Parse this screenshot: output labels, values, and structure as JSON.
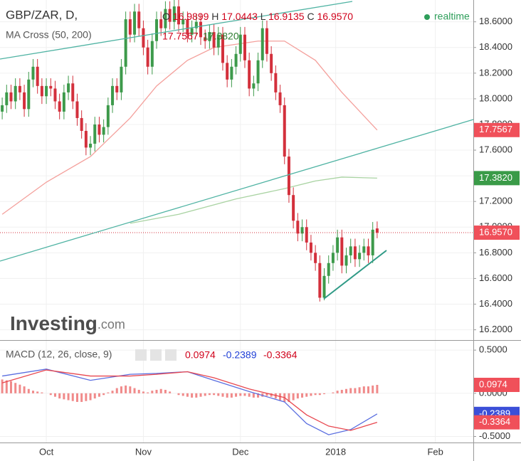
{
  "legend": {
    "symbol": "GBP/ZAR, D,",
    "o": "O",
    "open": "16.9899",
    "h": "H",
    "high": "17.0443",
    "l": "L",
    "low": "16.9135",
    "c": "C",
    "close": "16.9570",
    "ma_title": "MA Cross (50, 200)",
    "ma_fast": "17.7567",
    "ma_slow": "17.3820",
    "macd_title": "MACD (12, 26, close, 9)",
    "macd_hist": "0.0974",
    "macd_line": "-0.2389",
    "macd_signal": "-0.3364"
  },
  "realtime": "realtime",
  "brand": {
    "name": "Investing",
    "suffix": ".com"
  },
  "chart_data": [
    {
      "type": "candlestick",
      "up_color": "#3d9a4b",
      "down_color": "#d3303c",
      "grid": true,
      "open": [
        17.9,
        17.95,
        18.05,
        17.98,
        18.1,
        18.05,
        17.92,
        18.15,
        18.25,
        18.1,
        18.02,
        18.1,
        18.08,
        17.98,
        17.9,
        18.05,
        18.12,
        17.98,
        17.85,
        17.75,
        17.62,
        17.65,
        17.8,
        17.72,
        17.78,
        17.95,
        18.1,
        18.05,
        18.25,
        18.62,
        18.5,
        18.68,
        18.55,
        18.4,
        18.25,
        18.45,
        18.62,
        18.55,
        18.7,
        18.6,
        18.72,
        18.58,
        18.62,
        18.5,
        18.55,
        18.6,
        18.48,
        18.45,
        18.52,
        18.4,
        18.5,
        18.28,
        18.15,
        18.25,
        18.35,
        18.5,
        18.3,
        18.08,
        18.12,
        18.3,
        18.55,
        18.35,
        18.2,
        18.05,
        17.95,
        17.55,
        17.25,
        17.05,
        16.95,
        17.0,
        16.88,
        16.8,
        16.72,
        16.45,
        16.62,
        16.72,
        16.8,
        16.92,
        16.7,
        16.78,
        16.85,
        16.75,
        16.8,
        16.85,
        16.78,
        16.9899
      ],
      "high": [
        18.01,
        18.11,
        18.11,
        18.16,
        18.16,
        18.11,
        18.21,
        18.31,
        18.31,
        18.16,
        18.16,
        18.16,
        18.14,
        18.04,
        18.11,
        18.18,
        18.18,
        18.04,
        17.91,
        17.81,
        17.71,
        17.86,
        17.86,
        17.84,
        18.01,
        18.16,
        18.16,
        18.31,
        18.68,
        18.68,
        18.74,
        18.74,
        18.61,
        18.46,
        18.51,
        18.68,
        18.68,
        18.76,
        18.76,
        18.78,
        18.78,
        18.68,
        18.68,
        18.61,
        18.66,
        18.66,
        18.54,
        18.58,
        18.58,
        18.56,
        18.56,
        18.34,
        18.31,
        18.41,
        18.56,
        18.56,
        18.36,
        18.18,
        18.36,
        18.61,
        18.61,
        18.41,
        18.26,
        18.11,
        18.01,
        17.61,
        17.31,
        17.11,
        17.06,
        17.06,
        16.94,
        16.86,
        16.78,
        16.68,
        16.78,
        16.86,
        16.98,
        16.98,
        16.84,
        16.91,
        16.91,
        16.86,
        16.91,
        16.91,
        17.04,
        17.0443
      ],
      "low": [
        17.84,
        17.89,
        17.92,
        17.92,
        17.99,
        17.86,
        17.86,
        18.09,
        18.04,
        17.96,
        17.96,
        18.02,
        17.92,
        17.84,
        17.84,
        17.99,
        17.92,
        17.79,
        17.69,
        17.56,
        17.56,
        17.59,
        17.66,
        17.66,
        17.72,
        17.89,
        17.99,
        17.99,
        18.19,
        18.44,
        18.44,
        18.49,
        18.34,
        18.19,
        18.19,
        18.39,
        18.49,
        18.49,
        18.54,
        18.54,
        18.52,
        18.52,
        18.44,
        18.44,
        18.49,
        18.42,
        18.39,
        18.39,
        18.34,
        18.34,
        18.22,
        18.09,
        18.09,
        18.19,
        18.29,
        18.24,
        18.02,
        18.02,
        18.06,
        18.24,
        18.29,
        18.14,
        17.99,
        17.89,
        17.49,
        17.19,
        16.99,
        16.89,
        16.89,
        16.82,
        16.74,
        16.66,
        16.42,
        16.43,
        16.56,
        16.66,
        16.74,
        16.64,
        16.64,
        16.72,
        16.69,
        16.69,
        16.74,
        16.72,
        16.72,
        16.9135
      ],
      "close": [
        17.95,
        18.05,
        17.98,
        18.1,
        18.05,
        17.92,
        18.15,
        18.25,
        18.1,
        18.02,
        18.1,
        18.08,
        17.98,
        17.9,
        18.05,
        18.12,
        17.98,
        17.85,
        17.75,
        17.62,
        17.65,
        17.8,
        17.72,
        17.78,
        17.95,
        18.1,
        18.05,
        18.25,
        18.62,
        18.5,
        18.68,
        18.55,
        18.4,
        18.25,
        18.45,
        18.62,
        18.55,
        18.7,
        18.6,
        18.72,
        18.58,
        18.62,
        18.5,
        18.55,
        18.6,
        18.48,
        18.45,
        18.52,
        18.4,
        18.5,
        18.28,
        18.15,
        18.25,
        18.35,
        18.5,
        18.3,
        18.08,
        18.12,
        18.3,
        18.55,
        18.35,
        18.2,
        18.05,
        17.95,
        17.55,
        17.25,
        17.05,
        16.95,
        17.0,
        16.88,
        16.8,
        16.72,
        16.45,
        16.62,
        16.72,
        16.8,
        16.92,
        16.7,
        16.78,
        16.85,
        16.75,
        16.8,
        16.85,
        16.78,
        16.98,
        16.957
      ],
      "series": [
        {
          "color": "#f4a09c",
          "x": [
            0,
            10,
            20,
            29,
            35,
            42,
            48,
            58,
            64,
            71,
            77,
            85
          ],
          "values": [
            17.1,
            17.35,
            17.55,
            17.85,
            18.1,
            18.3,
            18.4,
            18.45,
            18.45,
            18.3,
            18.05,
            17.7567
          ]
        },
        {
          "color": "#a9d3a2",
          "x": [
            29,
            40,
            53,
            64,
            71,
            77,
            85
          ],
          "values": [
            17.03,
            17.1,
            17.22,
            17.3,
            17.36,
            17.39,
            17.382
          ]
        }
      ],
      "xlim": [
        -0.5,
        106.8
      ],
      "ylim": [
        16.12,
        18.77
      ],
      "xticks": [
        {
          "value": 10,
          "label": "Oct"
        },
        {
          "value": 32,
          "label": "Nov"
        },
        {
          "value": 54,
          "label": "Dec"
        },
        {
          "value": 75.6,
          "label": "2018"
        },
        {
          "value": 98.2,
          "label": "Feb"
        }
      ],
      "yticks": [
        {
          "value": 16.2,
          "label": "16.2000"
        },
        {
          "value": 16.4,
          "label": "16.4000"
        },
        {
          "value": 16.6,
          "label": "16.6000"
        },
        {
          "value": 16.8,
          "label": "16.8000"
        },
        {
          "value": 17.0,
          "label": "17.0000"
        },
        {
          "value": 17.2,
          "label": "17.2000"
        },
        {
          "value": 17.4,
          "label": "17.4000"
        },
        {
          "value": 17.6,
          "label": "17.6000"
        },
        {
          "value": 17.8,
          "label": "17.8000"
        },
        {
          "value": 18.0,
          "label": "18.0000"
        },
        {
          "value": 18.2,
          "label": "18.2000"
        },
        {
          "value": 18.4,
          "label": "18.4000"
        },
        {
          "value": 18.6,
          "label": "18.6000"
        }
      ],
      "price_tags": [
        {
          "value": 17.7567,
          "label": "17.7567",
          "color": "#f0505a"
        },
        {
          "value": 17.382,
          "label": "17.3820",
          "color": "#3a9b48"
        },
        {
          "value": 16.957,
          "label": "16.9570",
          "color": "#f0505a"
        }
      ]
    },
    {
      "type": "macd",
      "hist_color": "#f08a8a",
      "grid": true,
      "histogram": [
        0.16,
        0.15,
        0.14,
        0.12,
        0.1,
        0.08,
        0.05,
        0.03,
        0.02,
        0.01,
        0,
        -0.02,
        -0.04,
        -0.06,
        -0.07,
        -0.08,
        -0.09,
        -0.1,
        -0.1,
        -0.09,
        -0.08,
        -0.06,
        -0.04,
        -0.02,
        0.01,
        0.03,
        0.06,
        0.08,
        0.09,
        0.08,
        0.06,
        0.04,
        0.02,
        0.01,
        0.03,
        0.04,
        0.05,
        0.04,
        0.02,
        0,
        -0.02,
        -0.03,
        -0.04,
        -0.05,
        -0.05,
        -0.04,
        -0.03,
        -0.02,
        -0.02,
        -0.03,
        -0.04,
        -0.05,
        -0.05,
        -0.04,
        -0.03,
        -0.03,
        -0.04,
        -0.05,
        -0.05,
        -0.04,
        -0.03,
        -0.04,
        -0.06,
        -0.08,
        -0.1,
        -0.1,
        -0.08,
        -0.06,
        -0.05,
        -0.04,
        -0.03,
        -0.02,
        -0.02,
        -0.01,
        0,
        0.01,
        0.03,
        0.04,
        0.05,
        0.06,
        0.06,
        0.07,
        0.08,
        0.08,
        0.09,
        0.0974
      ],
      "series": [
        {
          "color": "#5a6ee0",
          "x": [
            0,
            10,
            20,
            29,
            35,
            42,
            48,
            56,
            64,
            69,
            74,
            79,
            85
          ],
          "values": [
            0.2,
            0.28,
            0.15,
            0.22,
            0.23,
            0.25,
            0.15,
            0.02,
            -0.1,
            -0.35,
            -0.48,
            -0.42,
            -0.2389
          ]
        },
        {
          "color": "#e8474f",
          "x": [
            0,
            10,
            20,
            29,
            35,
            42,
            48,
            56,
            64,
            69,
            74,
            79,
            85
          ],
          "values": [
            0.12,
            0.27,
            0.2,
            0.2,
            0.22,
            0.25,
            0.18,
            0.05,
            -0.05,
            -0.25,
            -0.38,
            -0.43,
            -0.3364
          ]
        }
      ],
      "ylim": [
        -0.57,
        0.6
      ],
      "yticks": [
        {
          "value": -0.5,
          "label": "-0.5000"
        },
        {
          "value": 0,
          "label": "0.0000"
        },
        {
          "value": 0.5,
          "label": "0.5000"
        }
      ],
      "price_tags": [
        {
          "value": 0.0974,
          "label": "0.0974",
          "color": "#f0505a"
        },
        {
          "value": -0.2389,
          "label": "-0.2389",
          "color": "#3b4fd8"
        },
        {
          "value": -0.3364,
          "label": "-0.3364",
          "color": "#f0505a"
        }
      ]
    }
  ]
}
